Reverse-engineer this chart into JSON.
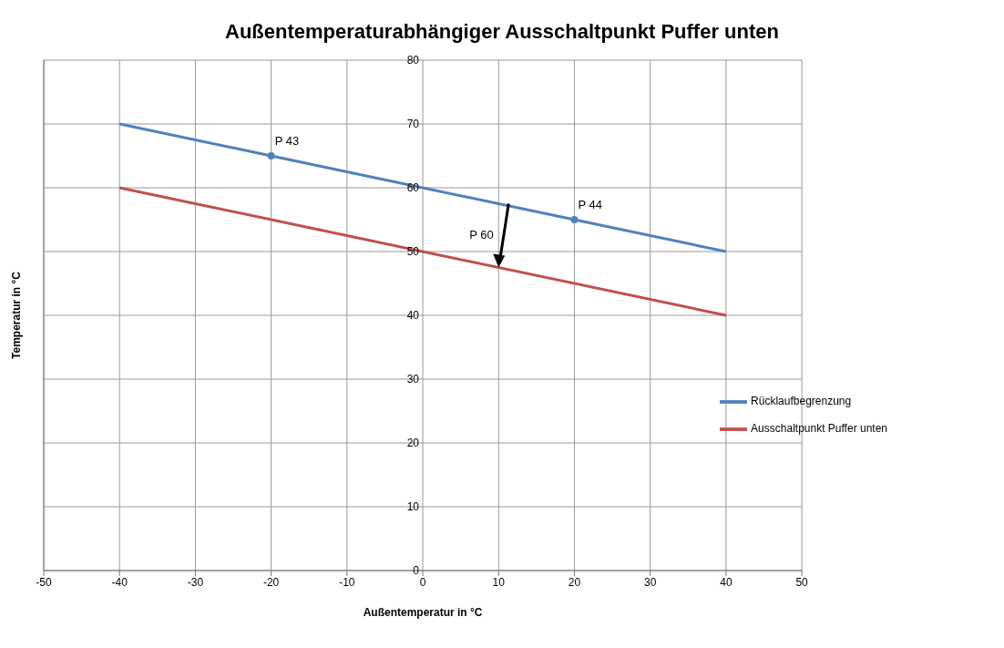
{
  "chart_data": {
    "type": "line",
    "title": "Außentemperaturabhängiger Ausschaltpunkt Puffer unten",
    "xlabel": "Außentemperatur in °C",
    "ylabel": "Temperatur in °C",
    "xlim": [
      -50,
      50
    ],
    "xticks": [
      -50,
      -40,
      -30,
      -20,
      -10,
      0,
      10,
      20,
      30,
      40,
      50
    ],
    "ylim": [
      0,
      80
    ],
    "yticks": [
      0,
      10,
      20,
      30,
      40,
      50,
      60,
      70,
      80
    ],
    "grid": true,
    "legend": "right",
    "marker": "none",
    "line_style": "solid",
    "series": [
      {
        "name": "Rücklaufbegrenzung",
        "color": "#4f81bd",
        "x": [
          -40,
          -20,
          20,
          40
        ],
        "values": [
          70,
          65,
          55,
          50
        ]
      },
      {
        "name": "Ausschaltpunkt Puffer unten",
        "color": "#c0504d",
        "x": [
          -40,
          40
        ],
        "values": [
          60,
          40
        ]
      },
      {
        "type": "scatter",
        "marker": "circle",
        "color": "#4f81bd",
        "x": [
          -20,
          20
        ],
        "values": [
          65,
          55
        ]
      }
    ],
    "annotations": [
      {
        "text": "P 43",
        "x": -20,
        "y": 65
      },
      {
        "text": "P 44",
        "x": 20,
        "y": 55
      },
      {
        "text": "P 60",
        "x": 10,
        "y": 47.5
      }
    ]
  }
}
